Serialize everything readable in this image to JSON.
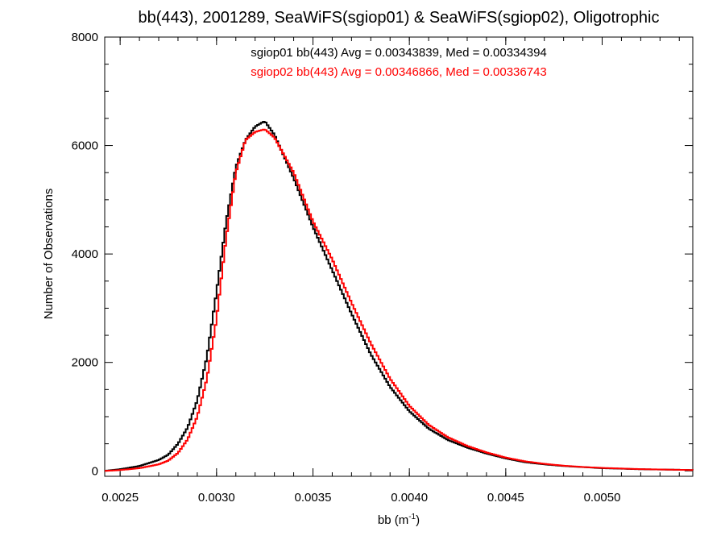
{
  "chart_data": {
    "type": "line",
    "title": "bb(443), 2001289, SeaWiFS(sgiop01) & SeaWiFS(sgiop02), Oligotrophic",
    "xlabel": "bb (m",
    "xlabel_sup": "-1",
    "xlabel_close": ")",
    "ylabel": "Number of Observations",
    "xlim": [
      0.00242,
      0.00547
    ],
    "ylim": [
      -100,
      8000
    ],
    "xticks": [
      0.0025,
      0.003,
      0.0035,
      0.004,
      0.0045,
      0.005
    ],
    "xtick_labels": [
      "0.0025",
      "0.0030",
      "0.0035",
      "0.0040",
      "0.0045",
      "0.0050"
    ],
    "yticks": [
      0,
      2000,
      4000,
      6000,
      8000
    ],
    "ytick_labels": [
      "0",
      "2000",
      "4000",
      "6000",
      "8000"
    ],
    "grid": false,
    "legend_position": "top-center",
    "series": [
      {
        "name": "sgiop01 bb(443) Avg = 0.00343839, Med = 0.00334394",
        "color": "#000000",
        "points": [
          [
            0.00242,
            0
          ],
          [
            0.0025,
            30
          ],
          [
            0.0026,
            90
          ],
          [
            0.0027,
            200
          ],
          [
            0.00275,
            300
          ],
          [
            0.0028,
            500
          ],
          [
            0.00285,
            800
          ],
          [
            0.0029,
            1300
          ],
          [
            0.00295,
            2100
          ],
          [
            0.003,
            3300
          ],
          [
            0.00305,
            4600
          ],
          [
            0.0031,
            5600
          ],
          [
            0.00315,
            6100
          ],
          [
            0.0032,
            6350
          ],
          [
            0.00325,
            6450
          ],
          [
            0.0033,
            6200
          ],
          [
            0.0034,
            5400
          ],
          [
            0.0035,
            4500
          ],
          [
            0.0036,
            3700
          ],
          [
            0.0037,
            2900
          ],
          [
            0.0038,
            2150
          ],
          [
            0.0039,
            1550
          ],
          [
            0.004,
            1100
          ],
          [
            0.0041,
            780
          ],
          [
            0.0042,
            570
          ],
          [
            0.0043,
            430
          ],
          [
            0.0044,
            320
          ],
          [
            0.0045,
            230
          ],
          [
            0.0046,
            160
          ],
          [
            0.0047,
            120
          ],
          [
            0.0048,
            90
          ],
          [
            0.0049,
            70
          ],
          [
            0.005,
            50
          ],
          [
            0.0052,
            30
          ],
          [
            0.0054,
            20
          ],
          [
            0.00547,
            15
          ]
        ]
      },
      {
        "name": "sgiop02 bb(443) Avg = 0.00346866, Med = 0.00336743",
        "color": "#ff0000",
        "points": [
          [
            0.00242,
            0
          ],
          [
            0.0025,
            15
          ],
          [
            0.0026,
            50
          ],
          [
            0.0027,
            120
          ],
          [
            0.00275,
            190
          ],
          [
            0.0028,
            330
          ],
          [
            0.00285,
            580
          ],
          [
            0.0029,
            1000
          ],
          [
            0.00295,
            1700
          ],
          [
            0.003,
            2800
          ],
          [
            0.00305,
            4300
          ],
          [
            0.0031,
            5500
          ],
          [
            0.00315,
            6100
          ],
          [
            0.0032,
            6250
          ],
          [
            0.00325,
            6300
          ],
          [
            0.0033,
            6150
          ],
          [
            0.0034,
            5500
          ],
          [
            0.0035,
            4600
          ],
          [
            0.0036,
            3900
          ],
          [
            0.0037,
            3100
          ],
          [
            0.0038,
            2350
          ],
          [
            0.0039,
            1700
          ],
          [
            0.004,
            1200
          ],
          [
            0.0041,
            850
          ],
          [
            0.0042,
            620
          ],
          [
            0.0043,
            460
          ],
          [
            0.0044,
            340
          ],
          [
            0.0045,
            245
          ],
          [
            0.0046,
            175
          ],
          [
            0.0047,
            130
          ],
          [
            0.0048,
            95
          ],
          [
            0.0049,
            72
          ],
          [
            0.005,
            55
          ],
          [
            0.0052,
            32
          ],
          [
            0.0054,
            20
          ],
          [
            0.00547,
            15
          ]
        ]
      }
    ]
  }
}
